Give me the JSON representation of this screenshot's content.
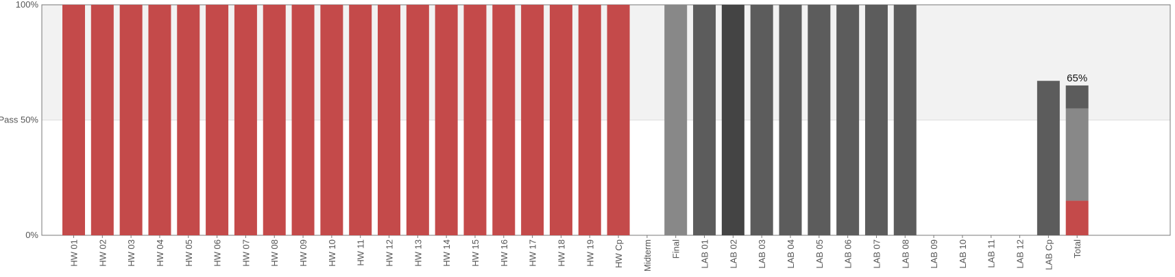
{
  "chart_data": {
    "type": "bar",
    "stacked_total": true,
    "ylim": [
      0,
      100
    ],
    "pass_threshold": 50,
    "y_ticks": [
      {
        "value": 0,
        "label": "0%"
      },
      {
        "value": 50,
        "label": "Pass 50%"
      },
      {
        "value": 100,
        "label": "100%"
      }
    ],
    "categories": [
      "HW 01",
      "HW 02",
      "HW 03",
      "HW 04",
      "HW 05",
      "HW 06",
      "HW 07",
      "HW 08",
      "HW 09",
      "HW 10",
      "HW 11",
      "HW 12",
      "HW 13",
      "HW 14",
      "HW 15",
      "HW 16",
      "HW 17",
      "HW 18",
      "HW 19",
      "HW Cp",
      "Midterm",
      "Final",
      "LAB 01",
      "LAB 02",
      "LAB 03",
      "LAB 04",
      "LAB 05",
      "LAB 06",
      "LAB 07",
      "LAB 08",
      "LAB 09",
      "LAB 10",
      "LAB 11",
      "LAB 12",
      "LAB Cp",
      "Total"
    ],
    "bars": [
      {
        "category": "HW 01",
        "value": 100,
        "color": "#c44a4a"
      },
      {
        "category": "HW 02",
        "value": 100,
        "color": "#c44a4a"
      },
      {
        "category": "HW 03",
        "value": 100,
        "color": "#c44a4a"
      },
      {
        "category": "HW 04",
        "value": 100,
        "color": "#c44a4a"
      },
      {
        "category": "HW 05",
        "value": 100,
        "color": "#c44a4a"
      },
      {
        "category": "HW 06",
        "value": 100,
        "color": "#c44a4a"
      },
      {
        "category": "HW 07",
        "value": 100,
        "color": "#c44a4a"
      },
      {
        "category": "HW 08",
        "value": 100,
        "color": "#c44a4a"
      },
      {
        "category": "HW 09",
        "value": 100,
        "color": "#c44a4a"
      },
      {
        "category": "HW 10",
        "value": 100,
        "color": "#c44a4a"
      },
      {
        "category": "HW 11",
        "value": 100,
        "color": "#c44a4a"
      },
      {
        "category": "HW 12",
        "value": 100,
        "color": "#c44a4a"
      },
      {
        "category": "HW 13",
        "value": 100,
        "color": "#c44a4a"
      },
      {
        "category": "HW 14",
        "value": 100,
        "color": "#c44a4a"
      },
      {
        "category": "HW 15",
        "value": 100,
        "color": "#c44a4a"
      },
      {
        "category": "HW 16",
        "value": 100,
        "color": "#c44a4a"
      },
      {
        "category": "HW 17",
        "value": 100,
        "color": "#c44a4a"
      },
      {
        "category": "HW 18",
        "value": 100,
        "color": "#c44a4a"
      },
      {
        "category": "HW 19",
        "value": 100,
        "color": "#c44a4a"
      },
      {
        "category": "HW Cp",
        "value": 100,
        "color": "#c44a4a"
      },
      {
        "category": "Midterm",
        "value": 0,
        "color": "#888888"
      },
      {
        "category": "Final",
        "value": 100,
        "color": "#888888"
      },
      {
        "category": "LAB 01",
        "value": 100,
        "color": "#5c5c5c"
      },
      {
        "category": "LAB 02",
        "value": 100,
        "color": "#444444"
      },
      {
        "category": "LAB 03",
        "value": 100,
        "color": "#5c5c5c"
      },
      {
        "category": "LAB 04",
        "value": 100,
        "color": "#5c5c5c"
      },
      {
        "category": "LAB 05",
        "value": 100,
        "color": "#5c5c5c"
      },
      {
        "category": "LAB 06",
        "value": 100,
        "color": "#5c5c5c"
      },
      {
        "category": "LAB 07",
        "value": 100,
        "color": "#5c5c5c"
      },
      {
        "category": "LAB 08",
        "value": 100,
        "color": "#5c5c5c"
      },
      {
        "category": "LAB 09",
        "value": 0,
        "color": "#5c5c5c"
      },
      {
        "category": "LAB 10",
        "value": 0,
        "color": "#5c5c5c"
      },
      {
        "category": "LAB 11",
        "value": 0,
        "color": "#5c5c5c"
      },
      {
        "category": "LAB 12",
        "value": 0,
        "color": "#5c5c5c"
      },
      {
        "category": "LAB Cp",
        "value": 67,
        "color": "#5c5c5c"
      },
      {
        "category": "Total",
        "segments": [
          {
            "value": 15,
            "color": "#c44a4a"
          },
          {
            "value": 40,
            "color": "#888888"
          },
          {
            "value": 10,
            "color": "#5c5c5c"
          }
        ],
        "label": "65%"
      }
    ],
    "colors": {
      "hw": "#c44a4a",
      "exam": "#888888",
      "lab": "#5c5c5c",
      "lab_dark": "#444444",
      "pass_zone": "#f2f2f2"
    }
  }
}
